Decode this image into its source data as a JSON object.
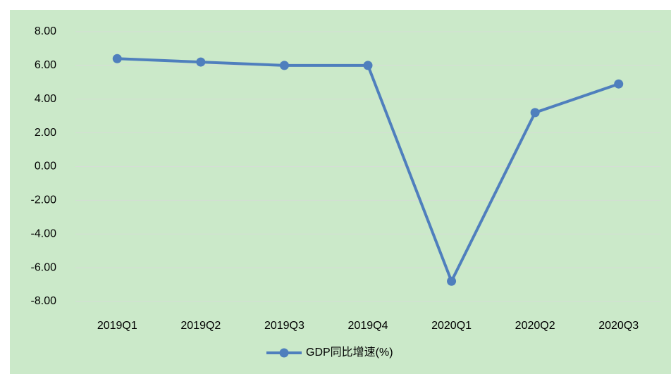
{
  "chart_data": {
    "type": "line",
    "categories": [
      "2019Q1",
      "2019Q2",
      "2019Q3",
      "2019Q4",
      "2020Q1",
      "2020Q2",
      "2020Q3"
    ],
    "series": [
      {
        "name": "GDP同比增速(%)",
        "color": "#4f7fbd",
        "values": [
          6.4,
          6.2,
          6.0,
          6.0,
          -6.8,
          3.2,
          4.9
        ]
      }
    ],
    "ylim": [
      -8,
      8
    ],
    "yticks": [
      {
        "value": -8,
        "label": "-8.00"
      },
      {
        "value": -6,
        "label": "-6.00"
      },
      {
        "value": -4,
        "label": "-4.00"
      },
      {
        "value": -2,
        "label": "-2.00"
      },
      {
        "value": 0,
        "label": "0.00"
      },
      {
        "value": 2,
        "label": "2.00"
      },
      {
        "value": 4,
        "label": "4.00"
      },
      {
        "value": 6,
        "label": "6.00"
      },
      {
        "value": 8,
        "label": "8.00"
      }
    ],
    "grid": true,
    "legend": "bottom"
  }
}
